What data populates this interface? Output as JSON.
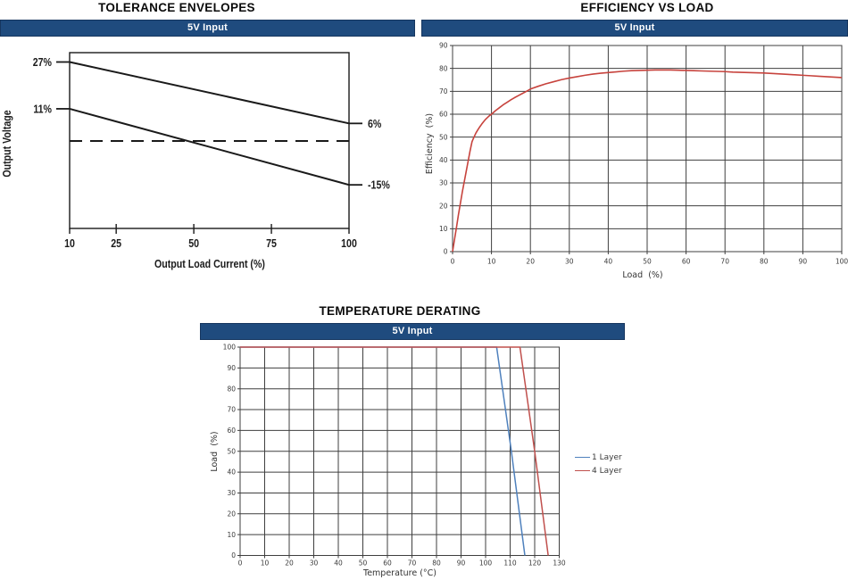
{
  "page": {
    "background": "#ffffff"
  },
  "banner_style": {
    "fill": "#1f4b7e",
    "border": "#16365f",
    "text_color": "#ffffff"
  },
  "chart_data": [
    {
      "id": "tolerance-envelopes",
      "type": "line",
      "title": "TOLERANCE ENVELOPES",
      "banner": "5V Input",
      "xlabel": "Output Load Current (%)",
      "ylabel": "Output Voltage",
      "xlim": [
        10,
        100
      ],
      "ylim": [
        -29.9,
        30.2
      ],
      "grid": false,
      "frame_color": "#1a1a1a",
      "xticks": {
        "values": [
          10,
          25,
          50,
          75,
          100
        ],
        "labels": [
          "10",
          "25",
          "50",
          "75",
          "100"
        ]
      },
      "series": [
        {
          "name": "upper tolerance limit",
          "color": "#1a1a1a",
          "width": 2,
          "points": [
            [
              10,
              27
            ],
            [
              100,
              6
            ]
          ]
        },
        {
          "name": "lower tolerance limit",
          "color": "#1a1a1a",
          "width": 2,
          "points": [
            [
              10,
              11
            ],
            [
              100,
              -15
            ]
          ]
        },
        {
          "name": "nominal output voltage",
          "color": "#1a1a1a",
          "width": 2,
          "dash": [
            14,
            9
          ],
          "points": [
            [
              10,
              0
            ],
            [
              100,
              0
            ]
          ]
        }
      ],
      "edge_labels": [
        {
          "side": "left",
          "value": 27,
          "label": "27%"
        },
        {
          "side": "left",
          "value": 11,
          "label": "11%"
        },
        {
          "side": "right",
          "value": 6,
          "label": "6%"
        },
        {
          "side": "right",
          "value": -15,
          "label": "-15%"
        }
      ]
    },
    {
      "id": "efficiency-vs-load",
      "type": "line",
      "title": "EFFICIENCY VS LOAD",
      "banner": "5V Input",
      "xlabel": "Load  (%)",
      "ylabel": "Efficiency  (%)",
      "xlim": [
        0,
        100
      ],
      "ylim": [
        0,
        90
      ],
      "grid": true,
      "grid_color": "#3f3f3f",
      "frame_color": "#3f3f3f",
      "xticks": {
        "values": [
          0,
          10,
          20,
          30,
          40,
          50,
          60,
          70,
          80,
          90,
          100
        ],
        "labels": [
          "0",
          "10",
          "20",
          "30",
          "40",
          "50",
          "60",
          "70",
          "80",
          "90",
          "100"
        ]
      },
      "yticks": {
        "values": [
          0,
          10,
          20,
          30,
          40,
          50,
          60,
          70,
          80,
          90
        ],
        "labels": [
          "0",
          "10",
          "20",
          "30",
          "40",
          "50",
          "60",
          "70",
          "80",
          "90"
        ]
      },
      "series": [
        {
          "name": "efficiency",
          "color": "#c7433d",
          "width": 1.6,
          "points": [
            [
              0,
              0
            ],
            [
              0.5,
              5.3
            ],
            [
              1,
              10.5
            ],
            [
              1.5,
              16
            ],
            [
              2,
              21
            ],
            [
              2.5,
              26
            ],
            [
              3,
              30.5
            ],
            [
              3.5,
              35
            ],
            [
              4,
              39.5
            ],
            [
              4.5,
              44
            ],
            [
              5,
              48
            ],
            [
              5.5,
              50
            ],
            [
              6,
              51.8
            ],
            [
              6.5,
              53.2
            ],
            [
              7,
              54.5
            ],
            [
              7.5,
              55.7
            ],
            [
              8,
              56.8
            ],
            [
              8.5,
              57.8
            ],
            [
              9,
              58.6
            ],
            [
              9.5,
              59.4
            ],
            [
              10,
              60
            ],
            [
              11,
              61.5
            ],
            [
              12,
              62.8
            ],
            [
              13,
              64.1
            ],
            [
              14,
              65.2
            ],
            [
              15,
              66.3
            ],
            [
              16,
              67.3
            ],
            [
              17,
              68.2
            ],
            [
              18,
              69.1
            ],
            [
              19,
              70
            ],
            [
              20,
              71
            ],
            [
              22,
              72.2
            ],
            [
              24,
              73.3
            ],
            [
              26,
              74.2
            ],
            [
              28,
              75.1
            ],
            [
              30,
              75.8
            ],
            [
              32,
              76.4
            ],
            [
              34,
              77
            ],
            [
              36,
              77.5
            ],
            [
              38,
              77.9
            ],
            [
              40,
              78.2
            ],
            [
              42,
              78.5
            ],
            [
              44,
              78.8
            ],
            [
              46,
              79
            ],
            [
              48,
              79.1
            ],
            [
              50,
              79.2
            ],
            [
              52,
              79.3
            ],
            [
              54,
              79.3
            ],
            [
              56,
              79.3
            ],
            [
              58,
              79.2
            ],
            [
              60,
              79.1
            ],
            [
              62,
              79
            ],
            [
              64,
              78.9
            ],
            [
              66,
              78.8
            ],
            [
              68,
              78.7
            ],
            [
              70,
              78.6
            ],
            [
              72,
              78.4
            ],
            [
              74,
              78.3
            ],
            [
              76,
              78.2
            ],
            [
              78,
              78.1
            ],
            [
              80,
              78
            ],
            [
              82,
              77.8
            ],
            [
              84,
              77.6
            ],
            [
              86,
              77.4
            ],
            [
              88,
              77.2
            ],
            [
              90,
              77
            ],
            [
              92,
              76.8
            ],
            [
              94,
              76.6
            ],
            [
              96,
              76.4
            ],
            [
              98,
              76.2
            ],
            [
              100,
              76
            ]
          ]
        }
      ]
    },
    {
      "id": "temperature-derating",
      "type": "line",
      "title": "TEMPERATURE DERATING",
      "banner": "5V Input",
      "xlabel": "Temperature (°C)",
      "ylabel": "Load  (%)",
      "xlim": [
        0,
        130
      ],
      "ylim": [
        0,
        100
      ],
      "grid": true,
      "grid_color": "#3f3f3f",
      "frame_color": "#3f3f3f",
      "xticks": {
        "values": [
          0,
          10,
          20,
          30,
          40,
          50,
          60,
          70,
          80,
          90,
          100,
          110,
          120,
          130
        ],
        "labels": [
          "0",
          "10",
          "20",
          "30",
          "40",
          "50",
          "60",
          "70",
          "80",
          "90",
          "100",
          "110",
          "120",
          "130"
        ]
      },
      "yticks": {
        "values": [
          0,
          10,
          20,
          30,
          40,
          50,
          60,
          70,
          80,
          90,
          100
        ],
        "labels": [
          "0",
          "10",
          "20",
          "30",
          "40",
          "50",
          "60",
          "70",
          "80",
          "90",
          "100"
        ]
      },
      "series": [
        {
          "name": "1 Layer",
          "color": "#4f81bd",
          "width": 1.5,
          "points": [
            [
              0,
              100
            ],
            [
              104.5,
              100
            ],
            [
              110.5,
              50
            ],
            [
              116,
              0
            ]
          ]
        },
        {
          "name": "4 Layer",
          "color": "#c0504d",
          "width": 1.5,
          "points": [
            [
              0,
              100
            ],
            [
              114,
              100
            ],
            [
              120,
              50
            ],
            [
              125.5,
              0
            ]
          ]
        }
      ],
      "legend": {
        "position": "right",
        "entries": [
          "1 Layer",
          "4 Layer"
        ]
      }
    }
  ]
}
